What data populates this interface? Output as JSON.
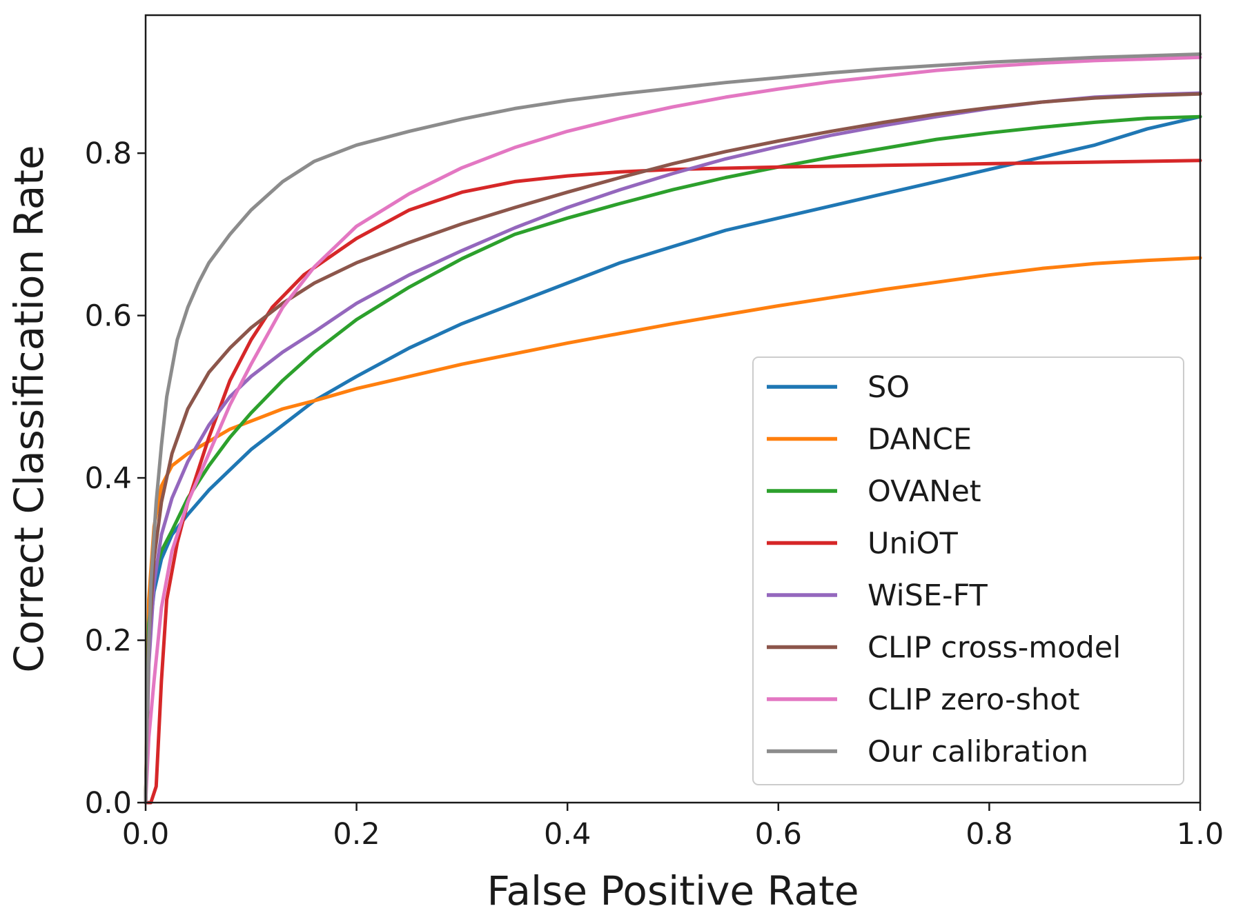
{
  "chart_data": {
    "type": "line",
    "title": "",
    "xlabel": "False Positive Rate",
    "ylabel": "Correct Classification Rate",
    "xlim": [
      0.0,
      1.0
    ],
    "ylim": [
      0.0,
      0.97
    ],
    "xticks": [
      "0.0",
      "0.2",
      "0.4",
      "0.6",
      "0.8",
      "1.0"
    ],
    "yticks": [
      "0.0",
      "0.2",
      "0.4",
      "0.6",
      "0.8"
    ],
    "grid": false,
    "legend_position": "lower-right",
    "series": [
      {
        "name": "SO",
        "color": "#1f77b4",
        "x": [
          0,
          0.003,
          0.008,
          0.015,
          0.025,
          0.04,
          0.06,
          0.08,
          0.1,
          0.13,
          0.16,
          0.2,
          0.25,
          0.3,
          0.35,
          0.4,
          0.45,
          0.5,
          0.55,
          0.6,
          0.65,
          0.7,
          0.75,
          0.8,
          0.85,
          0.9,
          0.95,
          1.0
        ],
        "y": [
          0.0,
          0.2,
          0.26,
          0.3,
          0.33,
          0.355,
          0.385,
          0.41,
          0.435,
          0.465,
          0.495,
          0.525,
          0.56,
          0.59,
          0.615,
          0.64,
          0.665,
          0.685,
          0.705,
          0.72,
          0.735,
          0.75,
          0.765,
          0.78,
          0.795,
          0.81,
          0.83,
          0.845
        ]
      },
      {
        "name": "DANCE",
        "color": "#ff7f0e",
        "x": [
          0,
          0.003,
          0.008,
          0.015,
          0.025,
          0.04,
          0.06,
          0.08,
          0.1,
          0.13,
          0.16,
          0.2,
          0.25,
          0.3,
          0.35,
          0.4,
          0.45,
          0.5,
          0.55,
          0.6,
          0.65,
          0.7,
          0.75,
          0.8,
          0.85,
          0.9,
          0.95,
          1.0
        ],
        "y": [
          0.0,
          0.25,
          0.34,
          0.39,
          0.415,
          0.43,
          0.445,
          0.46,
          0.47,
          0.485,
          0.495,
          0.51,
          0.525,
          0.54,
          0.553,
          0.566,
          0.578,
          0.59,
          0.601,
          0.612,
          0.622,
          0.632,
          0.641,
          0.65,
          0.658,
          0.664,
          0.668,
          0.671
        ]
      },
      {
        "name": "OVANet",
        "color": "#2ca02c",
        "x": [
          0,
          0.003,
          0.008,
          0.015,
          0.025,
          0.04,
          0.06,
          0.08,
          0.1,
          0.13,
          0.16,
          0.2,
          0.25,
          0.3,
          0.35,
          0.4,
          0.45,
          0.5,
          0.55,
          0.6,
          0.65,
          0.7,
          0.75,
          0.8,
          0.85,
          0.9,
          0.95,
          1.0
        ],
        "y": [
          0.0,
          0.22,
          0.28,
          0.31,
          0.335,
          0.375,
          0.415,
          0.45,
          0.48,
          0.52,
          0.555,
          0.595,
          0.635,
          0.67,
          0.7,
          0.72,
          0.738,
          0.755,
          0.77,
          0.783,
          0.795,
          0.806,
          0.817,
          0.825,
          0.832,
          0.838,
          0.843,
          0.845
        ]
      },
      {
        "name": "UniOT",
        "color": "#d62728",
        "x": [
          0,
          0.005,
          0.01,
          0.015,
          0.02,
          0.03,
          0.04,
          0.05,
          0.06,
          0.08,
          0.1,
          0.12,
          0.15,
          0.2,
          0.25,
          0.3,
          0.35,
          0.4,
          0.45,
          0.5,
          0.6,
          0.7,
          0.8,
          0.9,
          1.0
        ],
        "y": [
          0.0,
          0.0,
          0.02,
          0.15,
          0.25,
          0.32,
          0.37,
          0.41,
          0.45,
          0.52,
          0.57,
          0.61,
          0.65,
          0.695,
          0.73,
          0.752,
          0.765,
          0.772,
          0.777,
          0.78,
          0.783,
          0.785,
          0.787,
          0.789,
          0.791
        ]
      },
      {
        "name": "WiSE-FT",
        "color": "#9467bd",
        "x": [
          0,
          0.003,
          0.008,
          0.015,
          0.025,
          0.04,
          0.06,
          0.08,
          0.1,
          0.13,
          0.16,
          0.2,
          0.25,
          0.3,
          0.35,
          0.4,
          0.45,
          0.5,
          0.55,
          0.6,
          0.65,
          0.7,
          0.75,
          0.8,
          0.85,
          0.9,
          0.95,
          1.0
        ],
        "y": [
          0.0,
          0.17,
          0.27,
          0.33,
          0.375,
          0.42,
          0.465,
          0.5,
          0.525,
          0.555,
          0.58,
          0.615,
          0.65,
          0.68,
          0.708,
          0.733,
          0.755,
          0.775,
          0.793,
          0.808,
          0.822,
          0.834,
          0.845,
          0.855,
          0.863,
          0.869,
          0.872,
          0.874
        ]
      },
      {
        "name": "CLIP cross-model",
        "color": "#8c564b",
        "x": [
          0,
          0.003,
          0.008,
          0.015,
          0.025,
          0.04,
          0.06,
          0.08,
          0.1,
          0.13,
          0.16,
          0.2,
          0.25,
          0.3,
          0.35,
          0.4,
          0.45,
          0.5,
          0.55,
          0.6,
          0.65,
          0.7,
          0.75,
          0.8,
          0.85,
          0.9,
          0.95,
          1.0
        ],
        "y": [
          0.0,
          0.2,
          0.3,
          0.37,
          0.43,
          0.485,
          0.53,
          0.56,
          0.585,
          0.615,
          0.64,
          0.665,
          0.69,
          0.713,
          0.733,
          0.752,
          0.77,
          0.787,
          0.802,
          0.815,
          0.827,
          0.838,
          0.848,
          0.856,
          0.863,
          0.868,
          0.871,
          0.873
        ]
      },
      {
        "name": "CLIP zero-shot",
        "color": "#e377c2",
        "x": [
          0,
          0.003,
          0.008,
          0.015,
          0.025,
          0.04,
          0.06,
          0.08,
          0.1,
          0.13,
          0.16,
          0.2,
          0.25,
          0.3,
          0.35,
          0.4,
          0.45,
          0.5,
          0.55,
          0.6,
          0.65,
          0.7,
          0.75,
          0.8,
          0.85,
          0.9,
          0.95,
          1.0
        ],
        "y": [
          0.0,
          0.08,
          0.15,
          0.24,
          0.31,
          0.37,
          0.43,
          0.49,
          0.54,
          0.61,
          0.66,
          0.71,
          0.75,
          0.782,
          0.807,
          0.827,
          0.843,
          0.857,
          0.869,
          0.879,
          0.888,
          0.895,
          0.902,
          0.907,
          0.911,
          0.914,
          0.916,
          0.918
        ]
      },
      {
        "name": "Our calibration",
        "color": "#8c8c8c",
        "x": [
          0,
          0.002,
          0.005,
          0.01,
          0.015,
          0.02,
          0.03,
          0.04,
          0.05,
          0.06,
          0.08,
          0.1,
          0.13,
          0.16,
          0.2,
          0.25,
          0.3,
          0.35,
          0.4,
          0.45,
          0.5,
          0.55,
          0.6,
          0.65,
          0.7,
          0.75,
          0.8,
          0.85,
          0.9,
          0.95,
          1.0
        ],
        "y": [
          0.0,
          0.15,
          0.27,
          0.37,
          0.44,
          0.5,
          0.57,
          0.61,
          0.64,
          0.665,
          0.7,
          0.73,
          0.765,
          0.79,
          0.81,
          0.827,
          0.842,
          0.855,
          0.865,
          0.873,
          0.88,
          0.887,
          0.893,
          0.899,
          0.904,
          0.908,
          0.912,
          0.915,
          0.918,
          0.92,
          0.922
        ]
      }
    ]
  }
}
